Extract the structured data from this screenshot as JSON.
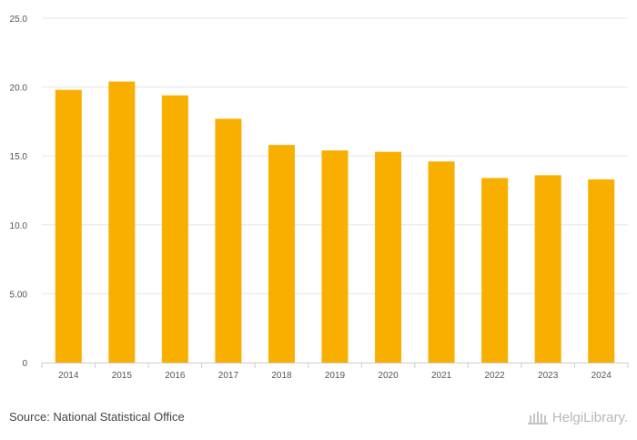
{
  "chart_data": {
    "type": "bar",
    "title": "",
    "xlabel": "",
    "ylabel": "",
    "categories": [
      "2014",
      "2015",
      "2016",
      "2017",
      "2018",
      "2019",
      "2020",
      "2021",
      "2022",
      "2023",
      "2024"
    ],
    "values": [
      19.8,
      20.4,
      19.4,
      17.7,
      15.8,
      15.4,
      15.3,
      14.6,
      13.4,
      13.6,
      13.3
    ],
    "ylim": [
      0,
      25
    ],
    "yticks": [
      0,
      5,
      10,
      15,
      20,
      25
    ],
    "ytick_labels": [
      "0",
      "5.00",
      "10.0",
      "15.0",
      "20.0",
      "25.0"
    ],
    "bar_color": "#F9AF00",
    "grid": true
  },
  "footer": {
    "source": "Source: National Statistical Office",
    "logo_text": "HelgiLibrary."
  }
}
